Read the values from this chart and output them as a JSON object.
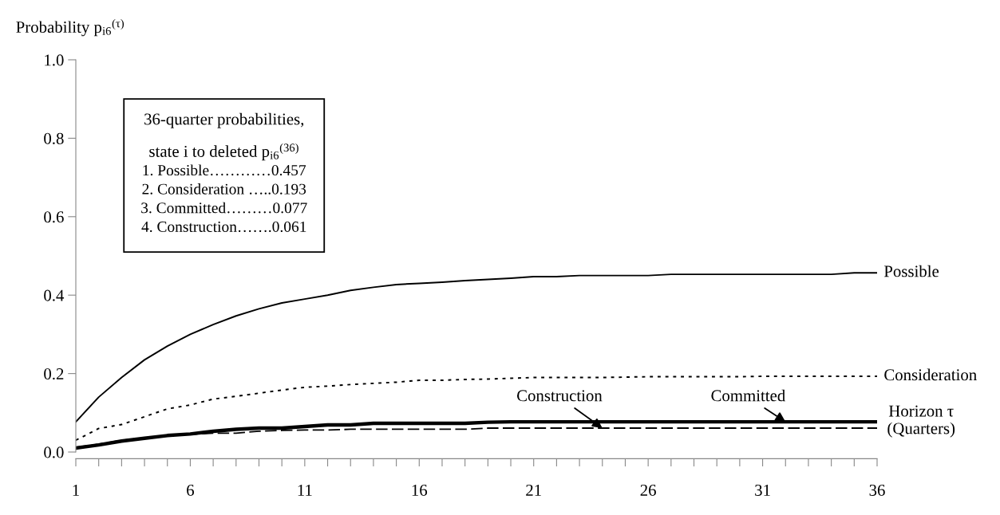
{
  "chart_data": {
    "type": "line",
    "ylabel": "Probability p$_{i6}$$^{(τ)}$",
    "xlabel": "Horizon τ\n(Quarters)",
    "x": [
      1,
      2,
      3,
      4,
      5,
      6,
      7,
      8,
      9,
      10,
      11,
      12,
      13,
      14,
      15,
      16,
      17,
      18,
      19,
      20,
      21,
      22,
      23,
      24,
      25,
      26,
      27,
      28,
      29,
      30,
      31,
      32,
      33,
      34,
      35,
      36
    ],
    "series": [
      {
        "name": "Possible",
        "color": "#000000",
        "line_style": "solid",
        "values": [
          0.077,
          0.14,
          0.19,
          0.235,
          0.27,
          0.3,
          0.325,
          0.347,
          0.365,
          0.38,
          0.39,
          0.4,
          0.412,
          0.42,
          0.427,
          0.43,
          0.433,
          0.437,
          0.44,
          0.443,
          0.447,
          0.447,
          0.45,
          0.45,
          0.45,
          0.45,
          0.453,
          0.453,
          0.453,
          0.453,
          0.453,
          0.453,
          0.453,
          0.453,
          0.457,
          0.457
        ]
      },
      {
        "name": "Consideration",
        "color": "#000000",
        "line_style": "dotted",
        "values": [
          0.03,
          0.06,
          0.07,
          0.09,
          0.11,
          0.12,
          0.135,
          0.142,
          0.15,
          0.158,
          0.165,
          0.168,
          0.172,
          0.175,
          0.178,
          0.183,
          0.183,
          0.185,
          0.186,
          0.188,
          0.19,
          0.19,
          0.19,
          0.19,
          0.191,
          0.192,
          0.192,
          0.192,
          0.192,
          0.192,
          0.193,
          0.193,
          0.193,
          0.193,
          0.193,
          0.193
        ]
      },
      {
        "name": "Committed",
        "color": "#000000",
        "line_style": "solid",
        "values": [
          0.01,
          0.018,
          0.028,
          0.035,
          0.042,
          0.046,
          0.053,
          0.058,
          0.061,
          0.061,
          0.065,
          0.069,
          0.069,
          0.073,
          0.073,
          0.073,
          0.073,
          0.073,
          0.076,
          0.077,
          0.077,
          0.077,
          0.077,
          0.077,
          0.077,
          0.077,
          0.077,
          0.077,
          0.077,
          0.077,
          0.077,
          0.077,
          0.077,
          0.077,
          0.077,
          0.077
        ]
      },
      {
        "name": "Construction",
        "color": "#000000",
        "line_style": "dashed",
        "values": [
          0.012,
          0.02,
          0.03,
          0.036,
          0.042,
          0.045,
          0.048,
          0.048,
          0.053,
          0.055,
          0.056,
          0.056,
          0.058,
          0.058,
          0.058,
          0.058,
          0.058,
          0.058,
          0.061,
          0.061,
          0.061,
          0.061,
          0.061,
          0.061,
          0.061,
          0.061,
          0.061,
          0.061,
          0.061,
          0.061,
          0.061,
          0.061,
          0.061,
          0.061,
          0.061,
          0.061
        ]
      }
    ],
    "xlim": [
      1,
      36
    ],
    "xticks": [
      1,
      {
        "value": 2,
        "label": null
      },
      {
        "value": 3,
        "label": null
      },
      {
        "value": 4,
        "label": null
      },
      {
        "value": 5,
        "label": null
      },
      6,
      {
        "value": 7,
        "label": null
      },
      {
        "value": 8,
        "label": null
      },
      {
        "value": 9,
        "label": null
      },
      {
        "value": 10,
        "label": null
      },
      11,
      {
        "value": 12,
        "label": null
      },
      {
        "value": 13,
        "label": null
      },
      {
        "value": 14,
        "label": null
      },
      {
        "value": 15,
        "label": null
      },
      16,
      {
        "value": 17,
        "label": null
      },
      {
        "value": 18,
        "label": null
      },
      {
        "value": 19,
        "label": null
      },
      {
        "value": 20,
        "label": null
      },
      21,
      {
        "value": 22,
        "label": null
      },
      {
        "value": 23,
        "label": null
      },
      {
        "value": 24,
        "label": null
      },
      {
        "value": 25,
        "label": null
      },
      26,
      {
        "value": 27,
        "label": null
      },
      {
        "value": 28,
        "label": null
      },
      {
        "value": 29,
        "label": null
      },
      {
        "value": 30,
        "label": null
      },
      31,
      {
        "value": 32,
        "label": null
      },
      {
        "value": 33,
        "label": null
      },
      {
        "value": 34,
        "label": null
      },
      {
        "value": 35,
        "label": null
      },
      36
    ],
    "ylim": [
      0,
      1
    ],
    "yticks": [
      {
        "value": 0,
        "label": "0.0"
      },
      {
        "value": 0.2,
        "label": "0.2"
      },
      {
        "value": 0.4,
        "label": "0.4"
      },
      {
        "value": 0.6,
        "label": "0.6"
      },
      {
        "value": 0.8,
        "label": "0.8"
      },
      {
        "value": 1,
        "label": "1.0"
      }
    ],
    "grid": false,
    "legend": false,
    "annotations": [
      "36-quarter probabilities,",
      "state i to deleted p$_{i6}$$^{(36)}$",
      "1. Possible…………0.457",
      "2. Consideration …..0.193",
      "3. Committed………0.077",
      "4. Construction…….0.061"
    ]
  }
}
